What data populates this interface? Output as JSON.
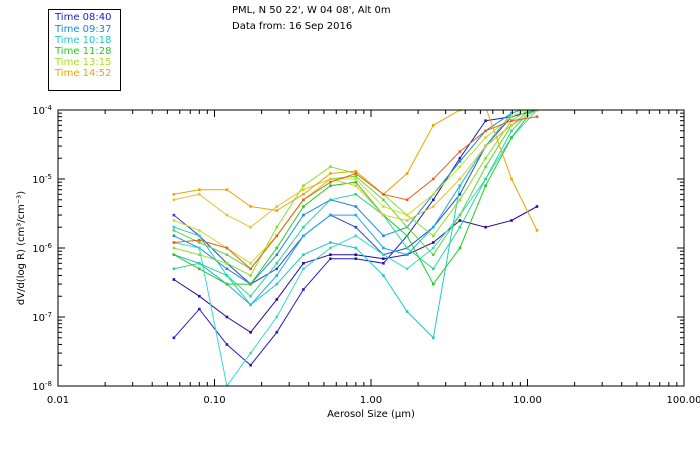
{
  "header": {
    "station": "PML, N 50 22', W 04 08', Alt 0m",
    "data_from": "Data from: 16 Sep 2016"
  },
  "chart_data": {
    "type": "line",
    "xscale": "log",
    "yscale": "log",
    "xlim": [
      0.01,
      100.0
    ],
    "ylim": [
      1e-08,
      0.0001
    ],
    "xlabel": "Aerosol Size (μm)",
    "ylabel": "dV/d(log R) (cm³/cm⁻³)",
    "x_ticks": [
      {
        "value": 0.01,
        "label": "0.01"
      },
      {
        "value": 0.1,
        "label": "0.10"
      },
      {
        "value": 1.0,
        "label": "1.00"
      },
      {
        "value": 10.0,
        "label": "10.00"
      },
      {
        "value": 100.0,
        "label": "100.00"
      }
    ],
    "y_ticks": [
      {
        "value": 1e-08,
        "mant": "10",
        "exp": "-8"
      },
      {
        "value": 1e-07,
        "mant": "10",
        "exp": "-7"
      },
      {
        "value": 1e-06,
        "mant": "10",
        "exp": "-6"
      },
      {
        "value": 1e-05,
        "mant": "10",
        "exp": "-5"
      },
      {
        "value": 0.0001,
        "mant": "10",
        "exp": "-4"
      }
    ],
    "x": [
      0.055,
      0.08,
      0.12,
      0.17,
      0.25,
      0.37,
      0.55,
      0.8,
      1.2,
      1.7,
      2.5,
      3.7,
      5.4,
      7.9,
      11.5
    ],
    "legend": [
      {
        "label": "Time 08:40",
        "color": "#1c1ccc"
      },
      {
        "label": "Time 09:37",
        "color": "#1a8ae0"
      },
      {
        "label": "Time 10:18",
        "color": "#22c8c8"
      },
      {
        "label": "Time 11:28",
        "color": "#22cc22"
      },
      {
        "label": "Time 13:15",
        "color": "#a8e020"
      },
      {
        "label": "Time 14:52",
        "color": "#e8a800"
      }
    ],
    "series": [
      {
        "color": "#2a0a9a",
        "values": [
          3.5e-07,
          2e-07,
          1e-07,
          6e-08,
          1.8e-07,
          6e-07,
          8e-07,
          8e-07,
          7e-07,
          8e-07,
          1.2e-06,
          2.5e-06,
          2e-06,
          2.5e-06,
          4e-06
        ]
      },
      {
        "color": "#1c1ccc",
        "values": [
          5e-08,
          1.3e-07,
          4e-08,
          2e-08,
          6e-08,
          2.5e-07,
          7e-07,
          7e-07,
          6e-07,
          1.5e-06,
          5e-06,
          2e-05,
          7e-05,
          8e-05,
          0.0001
        ]
      },
      {
        "color": "#2a44d8",
        "values": [
          3e-06,
          1.5e-06,
          6e-07,
          3e-07,
          5e-07,
          1.5e-06,
          3e-06,
          2e-06,
          8e-07,
          1e-06,
          2e-06,
          6e-06,
          3e-05,
          8e-05,
          0.0001
        ]
      },
      {
        "color": "#1a8ae0",
        "values": [
          1.5e-06,
          1e-06,
          5e-07,
          3e-07,
          8e-07,
          3e-06,
          5e-06,
          4e-06,
          1.5e-06,
          2e-06,
          6e-06,
          1.8e-05,
          5e-05,
          9e-05,
          0.00012
        ]
      },
      {
        "color": "#22a8e8",
        "values": [
          8e-07,
          6e-07,
          3e-07,
          1.5e-07,
          4e-07,
          1.5e-06,
          3e-06,
          3e-06,
          1e-06,
          8e-07,
          2e-06,
          8e-06,
          3e-05,
          6e-05,
          0.0001
        ]
      },
      {
        "color": "#22c8c8",
        "values": [
          2e-06,
          1.5e-06,
          4e-07,
          1.5e-07,
          3e-07,
          8e-07,
          1.2e-06,
          1e-06,
          4e-07,
          1.2e-07,
          5e-08,
          8e-06,
          3e-05,
          9e-05,
          0.00012
        ]
      },
      {
        "color": "#38d8d0",
        "values": [
          1.2e-06,
          1e-06,
          1e-08,
          3e-08,
          1e-07,
          5e-07,
          1e-06,
          1.5e-06,
          8e-07,
          5e-07,
          1e-06,
          3e-06,
          1e-05,
          4e-05,
          0.0001
        ]
      },
      {
        "color": "#28d890",
        "values": [
          5e-07,
          6e-07,
          4e-07,
          2e-07,
          6e-07,
          2e-06,
          5e-06,
          6e-06,
          3e-06,
          1e-06,
          5e-07,
          2e-06,
          1e-05,
          5e-05,
          0.00012
        ]
      },
      {
        "color": "#22cc22",
        "values": [
          8e-07,
          5e-07,
          3e-07,
          3e-07,
          1e-06,
          4e-06,
          8e-06,
          9e-06,
          3e-06,
          1.5e-06,
          3e-07,
          1e-06,
          8e-06,
          4e-05,
          0.00012
        ]
      },
      {
        "color": "#5ad83a",
        "values": [
          1.8e-06,
          1.2e-06,
          8e-07,
          5e-07,
          1.5e-06,
          5e-06,
          1e-05,
          1.1e-05,
          5e-06,
          2e-06,
          8e-07,
          3e-06,
          1.5e-05,
          6e-05,
          0.00012
        ]
      },
      {
        "color": "#8ae028",
        "values": [
          1e-06,
          8e-07,
          6e-07,
          4e-07,
          2e-06,
          8e-06,
          1.5e-05,
          1.2e-05,
          6e-06,
          3e-06,
          1.5e-06,
          5e-06,
          2e-05,
          7e-05,
          0.00012
        ]
      },
      {
        "color": "#c8e020",
        "values": [
          2.5e-06,
          1.8e-06,
          1e-06,
          6e-07,
          1.5e-06,
          5e-06,
          1e-05,
          1e-05,
          4e-06,
          3e-06,
          6e-06,
          1.5e-05,
          4e-05,
          8e-05,
          0.00012
        ]
      },
      {
        "color": "#e8c030",
        "values": [
          5e-06,
          6e-06,
          3e-06,
          2e-06,
          4e-06,
          7e-06,
          1e-05,
          8e-06,
          3e-06,
          2.5e-06,
          4e-06,
          1e-05,
          3e-05,
          6e-05,
          0.0001
        ]
      },
      {
        "color": "#e8a800",
        "values": [
          6e-06,
          7e-06,
          7e-06,
          4e-06,
          3.5e-06,
          6e-06,
          1.2e-05,
          1.3e-05,
          6e-06,
          1.2e-05,
          6e-05,
          0.0001,
          0.00011,
          1e-05,
          1.8e-06
        ]
      },
      {
        "color": "#e86020",
        "values": [
          1.2e-06,
          1.3e-06,
          1e-06,
          5e-07,
          1.5e-06,
          5e-06,
          9e-06,
          1.2e-05,
          6e-06,
          5e-06,
          1e-05,
          2.5e-05,
          5e-05,
          7e-05,
          8e-05
        ]
      }
    ]
  }
}
